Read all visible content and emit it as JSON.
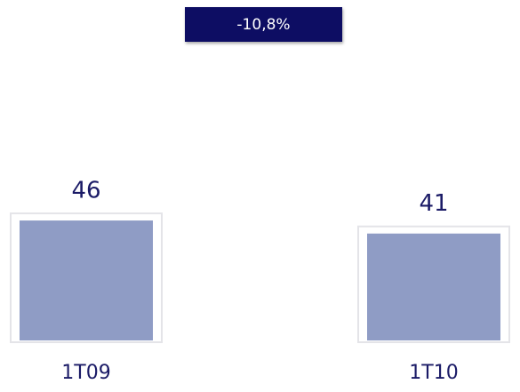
{
  "chart_data": {
    "type": "bar",
    "annotation": "-10,8%",
    "categories": [
      "1T09",
      "1T10"
    ],
    "values": [
      46,
      41
    ],
    "color": "#8f9cc5",
    "ylim": [
      0,
      60
    ]
  }
}
